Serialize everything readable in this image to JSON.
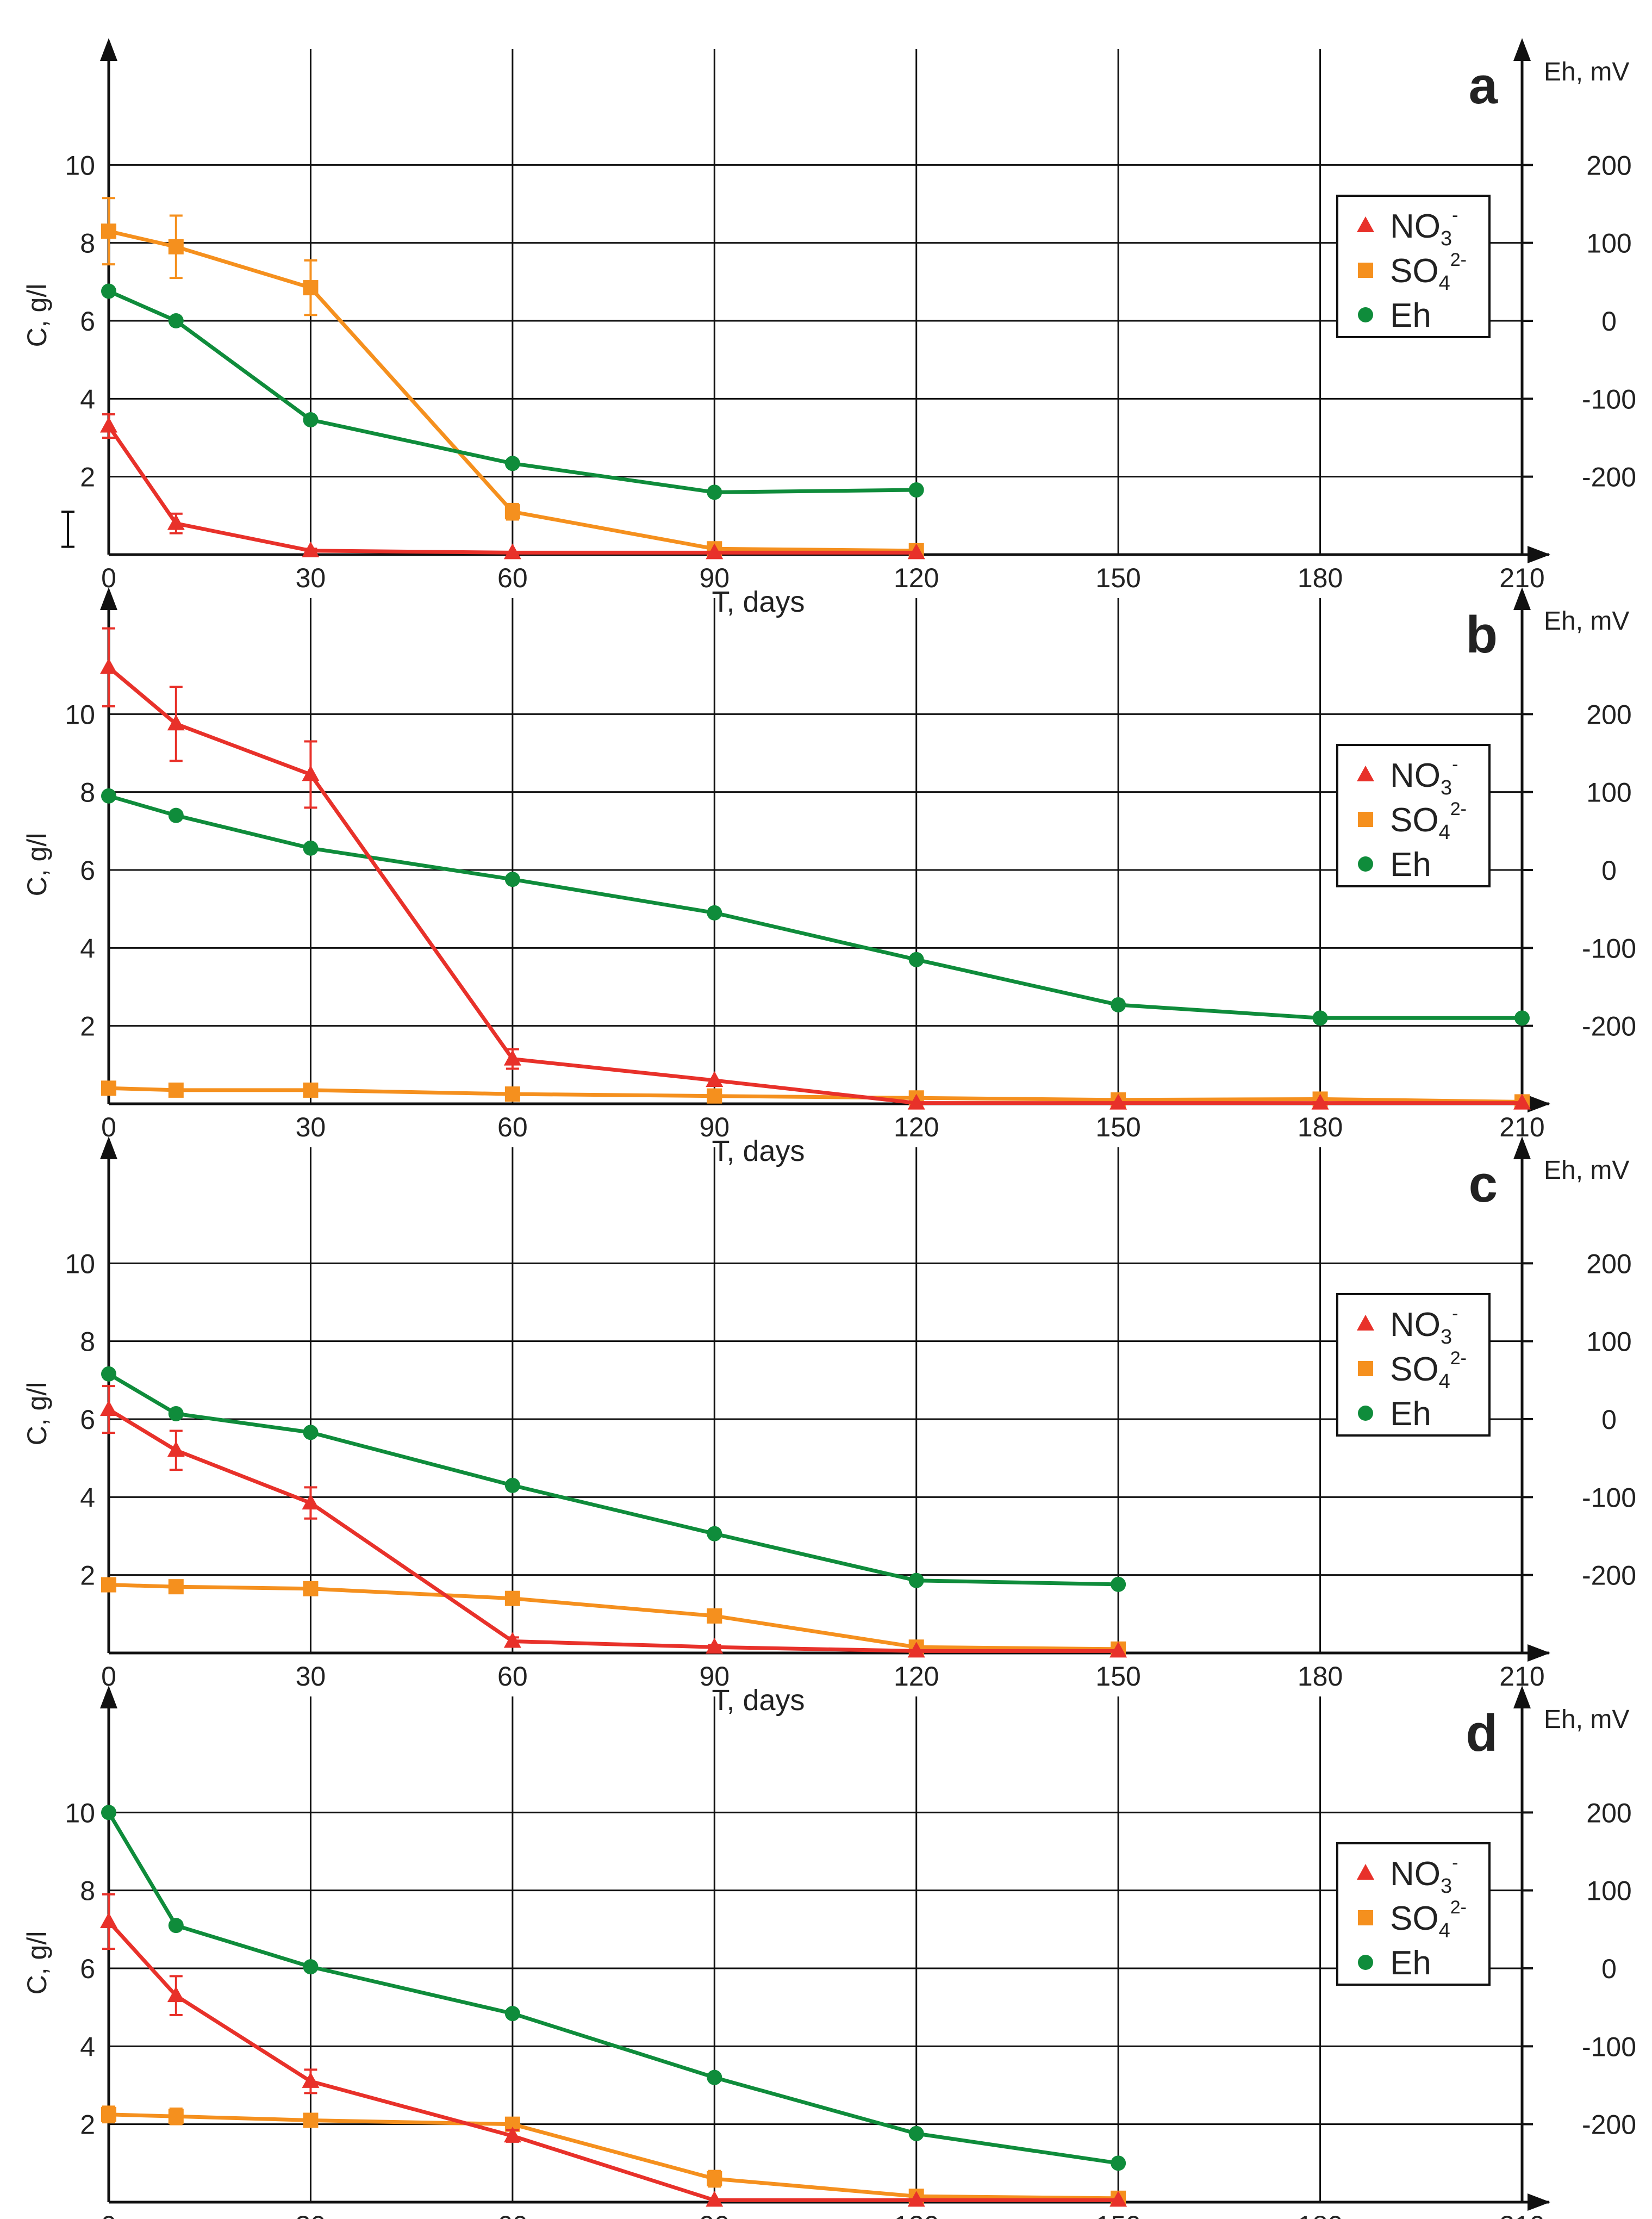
{
  "colors": {
    "nitrate": "#e8312a",
    "sulfate": "#f5901e",
    "eh": "#0f8c3b",
    "axis": "#111111",
    "grid": "#111111"
  },
  "shared_labels": {
    "x_label": "T, days",
    "y_label": "C, g/l",
    "y2_label": "Eh, mV",
    "x_ticks": [
      "0",
      "30",
      "60",
      "90",
      "120",
      "150",
      "180",
      "210"
    ],
    "y_ticks": [
      "2",
      "4",
      "6",
      "8",
      "10"
    ],
    "y2_ticks": [
      "200",
      "100",
      "0",
      "-100",
      "-200"
    ]
  },
  "chart_data": [
    {
      "panel": "a",
      "type": "line",
      "xlabel": "T, days",
      "ylabel": "C, g/l",
      "y2label": "Eh, mV",
      "xlim": [
        0,
        210
      ],
      "ylim": [
        0,
        12
      ],
      "y2lim": [
        -300,
        300
      ],
      "legend": [
        "NO3-",
        "SO42-",
        "Eh"
      ],
      "legend_position": "right",
      "series": [
        {
          "name": "NO3-",
          "axis": "left",
          "x": [
            0,
            10,
            30,
            60,
            90,
            120
          ],
          "values": [
            3.3,
            0.8,
            0.1,
            0.05,
            0.05,
            0.05
          ],
          "err": [
            0.3,
            0.25,
            0.05,
            0,
            0,
            0
          ]
        },
        {
          "name": "SO42-",
          "axis": "left",
          "x": [
            0,
            10,
            30,
            60,
            90,
            120
          ],
          "values": [
            8.3,
            7.9,
            6.85,
            1.1,
            0.15,
            0.1
          ],
          "err": [
            0.85,
            0.8,
            0.7,
            0.2,
            0.05,
            0.05
          ]
        },
        {
          "name": "Eh",
          "axis": "right",
          "x": [
            0,
            10,
            30,
            60,
            90,
            120
          ],
          "values": [
            38,
            0,
            -127,
            -183,
            -220,
            -217
          ]
        }
      ],
      "extra_error_bar": {
        "x": -10,
        "y_low": 0.2,
        "y_high": 1.1
      }
    },
    {
      "panel": "b",
      "type": "line",
      "xlabel": "T, days",
      "ylabel": "C, g/l",
      "y2label": "Eh, mV",
      "xlim": [
        0,
        210
      ],
      "ylim": [
        0,
        12
      ],
      "y2lim": [
        -300,
        300
      ],
      "legend": [
        "NO3-",
        "SO42-",
        "Eh"
      ],
      "legend_position": "right",
      "series": [
        {
          "name": "NO3-",
          "axis": "left",
          "x": [
            0,
            10,
            30,
            60,
            90,
            120,
            150,
            180,
            210
          ],
          "values": [
            11.2,
            9.75,
            8.45,
            1.15,
            0.6,
            0.02,
            0.02,
            0.02,
            0.02
          ],
          "err": [
            1.0,
            0.95,
            0.85,
            0.25,
            0,
            0,
            0,
            0,
            0
          ]
        },
        {
          "name": "SO42-",
          "axis": "left",
          "x": [
            0,
            10,
            30,
            60,
            90,
            120,
            150,
            180,
            210
          ],
          "values": [
            0.4,
            0.35,
            0.35,
            0.25,
            0.2,
            0.15,
            0.1,
            0.12,
            0.05
          ]
        },
        {
          "name": "Eh",
          "axis": "right",
          "x": [
            0,
            10,
            30,
            60,
            90,
            120,
            150,
            180,
            210
          ],
          "values": [
            95,
            70,
            28,
            -12,
            -55,
            -115,
            -173,
            -190,
            -190
          ]
        }
      ]
    },
    {
      "panel": "c",
      "type": "line",
      "xlabel": "T, days",
      "ylabel": "C, g/l",
      "y2label": "Eh, mV",
      "xlim": [
        0,
        210
      ],
      "ylim": [
        0,
        12
      ],
      "y2lim": [
        -300,
        300
      ],
      "legend": [
        "NO3-",
        "SO42-",
        "Eh"
      ],
      "legend_position": "right",
      "series": [
        {
          "name": "NO3-",
          "axis": "left",
          "x": [
            0,
            10,
            30,
            60,
            90,
            120,
            150
          ],
          "values": [
            6.25,
            5.2,
            3.85,
            0.3,
            0.15,
            0.05,
            0.05
          ],
          "err": [
            0.6,
            0.5,
            0.4,
            0.1,
            0.05,
            0,
            0
          ]
        },
        {
          "name": "SO42-",
          "axis": "left",
          "x": [
            0,
            10,
            30,
            60,
            90,
            120,
            150
          ],
          "values": [
            1.75,
            1.7,
            1.65,
            1.4,
            0.95,
            0.15,
            0.1
          ],
          "err": [
            0.15,
            0.1,
            0.1,
            0.15,
            0.15,
            0.05,
            0.05
          ]
        },
        {
          "name": "Eh",
          "axis": "right",
          "x": [
            0,
            10,
            30,
            60,
            90,
            120,
            150
          ],
          "values": [
            58,
            7,
            -17,
            -85,
            -147,
            -207,
            -212
          ]
        }
      ]
    },
    {
      "panel": "d",
      "type": "line",
      "xlabel": "T, days",
      "ylabel": "C, g/l",
      "y2label": "Eh, mV",
      "xlim": [
        0,
        210
      ],
      "ylim": [
        0,
        12
      ],
      "y2lim": [
        -300,
        300
      ],
      "legend": [
        "NO3-",
        "SO42-",
        "Eh"
      ],
      "legend_position": "right",
      "series": [
        {
          "name": "NO3-",
          "axis": "left",
          "x": [
            0,
            10,
            30,
            60,
            90,
            120,
            150
          ],
          "values": [
            7.2,
            5.3,
            3.1,
            1.7,
            0.05,
            0.05,
            0.05
          ],
          "err": [
            0.7,
            0.5,
            0.3,
            0.15,
            0,
            0,
            0
          ]
        },
        {
          "name": "SO42-",
          "axis": "left",
          "x": [
            0,
            10,
            30,
            60,
            90,
            120,
            150
          ],
          "values": [
            2.25,
            2.2,
            2.1,
            2.0,
            0.6,
            0.15,
            0.1
          ],
          "err": [
            0.2,
            0.2,
            0.15,
            0.15,
            0.2,
            0.05,
            0.05
          ]
        },
        {
          "name": "Eh",
          "axis": "right",
          "x": [
            0,
            10,
            30,
            60,
            90,
            120,
            150
          ],
          "values": [
            200,
            55,
            2,
            -58,
            -140,
            -212,
            -250
          ]
        }
      ]
    }
  ]
}
